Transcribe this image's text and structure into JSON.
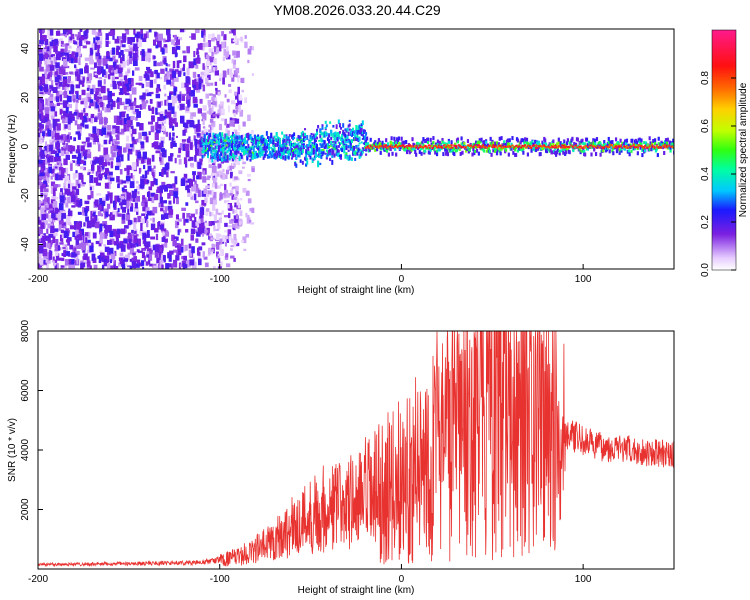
{
  "title": "YM08.2026.033.20.44.C29",
  "chart_data": [
    {
      "type": "heatmap",
      "xlabel": "Height of straight line (km)",
      "ylabel": "Frequency (Hz)",
      "xlim": [
        -200,
        150
      ],
      "ylim": [
        -50,
        48
      ],
      "xticks": [
        -200,
        -100,
        0,
        100
      ],
      "yticks": [
        -40,
        -20,
        0,
        20,
        40
      ],
      "description_bands": [
        {
          "x_start": -200,
          "x_end": -110,
          "pattern": "broadband low-amplitude scatter across all frequencies",
          "amplitude": [
            0.05,
            0.25
          ]
        },
        {
          "x_start": -110,
          "x_end": -85,
          "pattern": "fading scatter",
          "amplitude": [
            0.02,
            0.12
          ]
        },
        {
          "x_start": -110,
          "x_end": -20,
          "pattern": "band near 0 Hz widening to ±12 Hz",
          "amplitude": [
            0.2,
            0.55
          ]
        },
        {
          "x_start": -20,
          "x_end": 150,
          "pattern": "narrow strong line at 0 Hz",
          "amplitude": [
            0.7,
            0.95
          ]
        }
      ],
      "colorbar": {
        "label": "Normalized spectral amplitude",
        "range": [
          0,
          1
        ],
        "ticks": [
          "0.0",
          "0.2",
          "0.4",
          "0.6",
          "0.8"
        ]
      }
    },
    {
      "type": "line",
      "xlabel": "Height of straight line (km)",
      "ylabel": "SNR (10 * v/v)",
      "xlim": [
        -200,
        150
      ],
      "ylim": [
        0,
        8000
      ],
      "xticks": [
        -200,
        -100,
        0,
        100
      ],
      "yticks": [
        2000,
        4000,
        6000,
        8000
      ],
      "color": "#e8322f",
      "series": [
        {
          "name": "SNR",
          "x": [
            -200,
            -150,
            -110,
            -90,
            -75,
            -60,
            -45,
            -30,
            -15,
            0,
            10,
            20,
            30,
            40,
            50,
            60,
            70,
            80,
            90,
            100,
            110,
            120,
            130,
            150
          ],
          "y": [
            150,
            180,
            220,
            400,
            800,
            1400,
            2000,
            2200,
            2400,
            3000,
            3400,
            4200,
            4500,
            5000,
            5600,
            5400,
            5500,
            4800,
            4600,
            4300,
            4100,
            4050,
            3950,
            3850
          ]
        }
      ]
    }
  ]
}
